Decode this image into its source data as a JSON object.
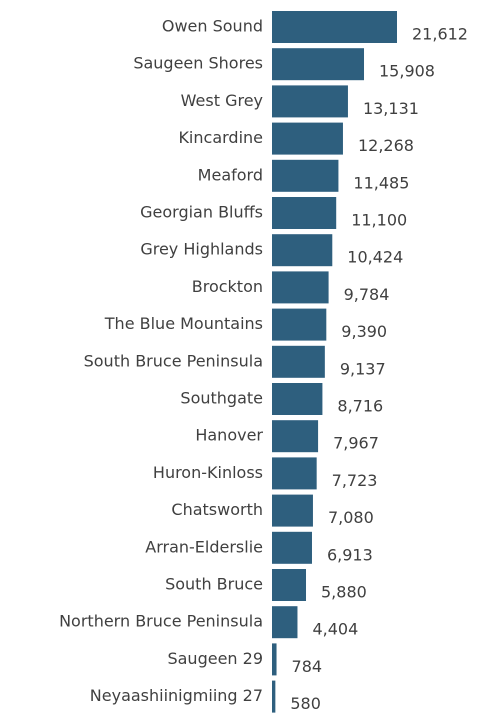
{
  "chart_data": {
    "type": "bar",
    "orientation": "horizontal",
    "categories": [
      "Owen Sound",
      "Saugeen Shores",
      "West Grey",
      "Kincardine",
      "Meaford",
      "Georgian Bluffs",
      "Grey Highlands",
      "Brockton",
      "The Blue Mountains",
      "South Bruce Peninsula",
      "Southgate",
      "Hanover",
      "Huron-Kinloss",
      "Chatsworth",
      "Arran-Elderslie",
      "South Bruce",
      "Northern Bruce Peninsula",
      "Saugeen 29",
      "Neyaashiinigmiing 27"
    ],
    "values": [
      21612,
      15908,
      13131,
      12268,
      11485,
      11100,
      10424,
      9784,
      9390,
      9137,
      8716,
      7967,
      7723,
      7080,
      6913,
      5880,
      4404,
      784,
      580
    ],
    "value_labels": [
      "21,612",
      "15,908",
      "13,131",
      "12,268",
      "11,485",
      "11,100",
      "10,424",
      "9,784",
      "9,390",
      "9,137",
      "8,716",
      "7,967",
      "7,723",
      "7,080",
      "6,913",
      "5,880",
      "4,404",
      "784",
      "580"
    ],
    "color": "#2e5f7e"
  }
}
